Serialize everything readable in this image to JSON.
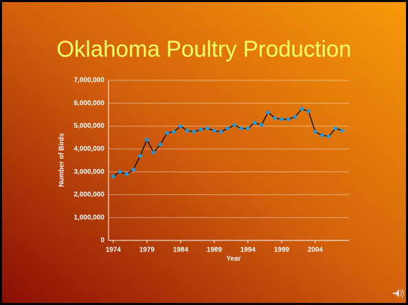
{
  "chart_data": {
    "type": "line",
    "title": "Oklahoma Poultry Production",
    "xlabel": "Year",
    "ylabel": "Number of Birds",
    "x": [
      1974,
      1975,
      1976,
      1977,
      1978,
      1979,
      1980,
      1981,
      1982,
      1983,
      1984,
      1985,
      1986,
      1987,
      1988,
      1989,
      1990,
      1991,
      1992,
      1993,
      1994,
      1995,
      1996,
      1997,
      1998,
      1999,
      2000,
      2001,
      2002,
      2003,
      2004,
      2005,
      2006,
      2007,
      2008
    ],
    "values": [
      2800000,
      3000000,
      2900000,
      3100000,
      3700000,
      4400000,
      3850000,
      4200000,
      4700000,
      4750000,
      5000000,
      4800000,
      4750000,
      4850000,
      4900000,
      4800000,
      4750000,
      4900000,
      5050000,
      4900000,
      4900000,
      5150000,
      5050000,
      5600000,
      5350000,
      5300000,
      5300000,
      5400000,
      5750000,
      5650000,
      4750000,
      4600000,
      4550000,
      4900000,
      4800000
    ],
    "color": "#1e9be0",
    "line_color": "#111111",
    "xlim": [
      1973.3,
      2009
    ],
    "xticks": [
      1974,
      1979,
      1984,
      1989,
      1994,
      1999,
      2004
    ],
    "ylim": [
      0,
      7000000
    ],
    "yticks": [
      0,
      {
        "value": 1000000,
        "label": "1,000,000"
      },
      {
        "value": 2000000,
        "label": "2,000,000"
      },
      {
        "value": 3000000,
        "label": "3,000,000"
      },
      {
        "value": 4000000,
        "label": "4,000,000"
      },
      {
        "value": 5000000,
        "label": "5,000,000"
      },
      {
        "value": 6000000,
        "label": "6,000,000"
      },
      {
        "value": 7000000,
        "label": "7,000,000"
      }
    ],
    "grid": true
  }
}
